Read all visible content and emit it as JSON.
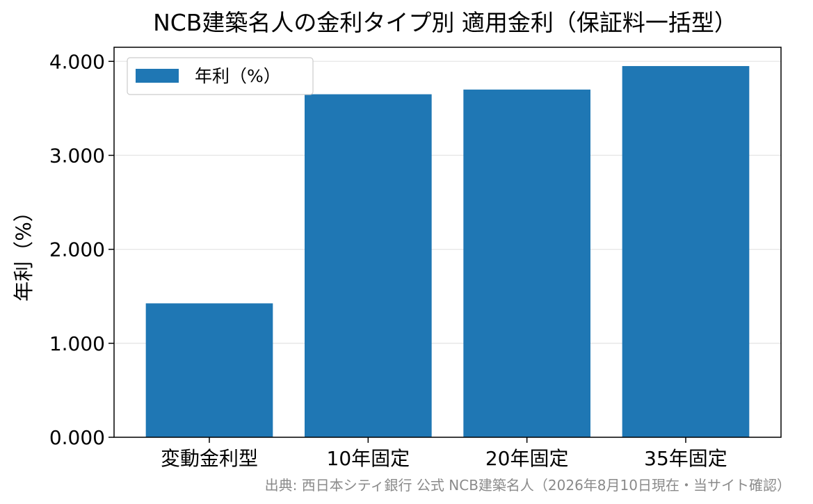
{
  "chart_data": {
    "type": "bar",
    "title": "NCB建築名人の金利タイプ別 適用金利（保証料一括型）",
    "xlabel": "",
    "ylabel": "年利（%）",
    "categories": [
      "変動金利型",
      "10年固定",
      "20年固定",
      "35年固定"
    ],
    "series": [
      {
        "name": "年利（%）",
        "values": [
          1.425,
          3.65,
          3.7,
          3.95
        ]
      }
    ],
    "ylim": [
      0,
      4.15
    ],
    "yticks": [
      0,
      1,
      2,
      3,
      4
    ],
    "ytick_labels": [
      "0.000",
      "1.000",
      "2.000",
      "3.000",
      "4.000"
    ],
    "grid": "horizontal",
    "legend_position": "upper-left",
    "bar_color": "#1f77b4",
    "grid_color": "#e6e6e6",
    "source": "出典: 西日本シティ銀行 公式 NCB建築名人（2026年8月10日現在・当サイト確認）"
  }
}
